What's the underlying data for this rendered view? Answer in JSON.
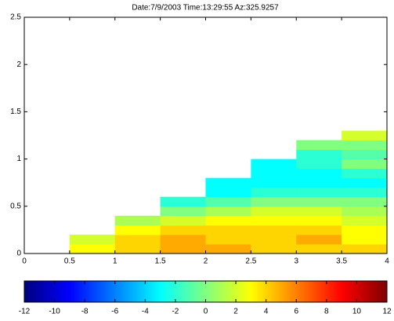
{
  "chart_data": {
    "type": "heatmap",
    "title": "Date:7/9/2003  Time:13:29:55  Az:325.9257",
    "x_edges": [
      0.5,
      1,
      1.5,
      2,
      2.5,
      3,
      3.5,
      4
    ],
    "y_edges": [
      0,
      0.1,
      0.2,
      0.3,
      0.4,
      0.5,
      0.6,
      0.7,
      0.8,
      0.9,
      1.0,
      1.1,
      1.2,
      1.3
    ],
    "z": [
      [
        3,
        4,
        5,
        5,
        4,
        4,
        4
      ],
      [
        2,
        4,
        5,
        4,
        4,
        5,
        3
      ],
      [
        null,
        3,
        4,
        4,
        4,
        4,
        3
      ],
      [
        null,
        1,
        2,
        3,
        3,
        3,
        2
      ],
      [
        null,
        null,
        0,
        1,
        2,
        2,
        1
      ],
      [
        null,
        null,
        -2,
        -1,
        0,
        0,
        0
      ],
      [
        null,
        null,
        null,
        -3,
        -2,
        -2,
        -2
      ],
      [
        null,
        null,
        null,
        -3,
        -3,
        -3,
        -3
      ],
      [
        null,
        null,
        null,
        null,
        -3,
        -3,
        -2
      ],
      [
        null,
        null,
        null,
        null,
        -3,
        -2,
        0
      ],
      [
        null,
        null,
        null,
        null,
        null,
        -2,
        -1
      ],
      [
        null,
        null,
        null,
        null,
        null,
        0,
        0
      ],
      [
        null,
        null,
        null,
        null,
        null,
        null,
        2
      ]
    ],
    "colormap": "jet",
    "xlim": [
      0,
      4
    ],
    "xticks": [
      0,
      0.5,
      1,
      1.5,
      2,
      2.5,
      3,
      3.5,
      4
    ],
    "ylim": [
      0,
      2.5
    ],
    "yticks": [
      0,
      0.5,
      1,
      1.5,
      2,
      2.5
    ],
    "clim": [
      -12,
      12
    ],
    "cticks": [
      -12,
      -10,
      -8,
      -6,
      -4,
      -2,
      0,
      2,
      4,
      6,
      8,
      10,
      12
    ]
  }
}
